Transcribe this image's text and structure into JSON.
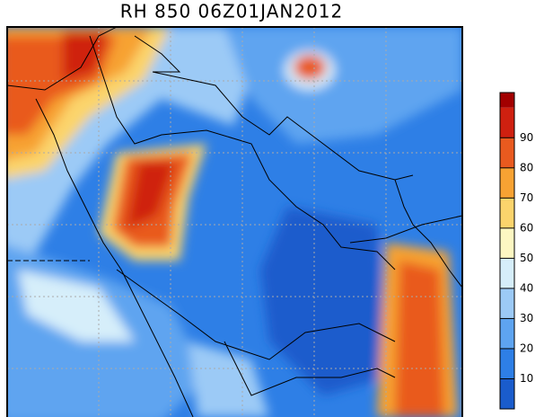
{
  "title": "RH 850 06Z01JAN2012",
  "colorbar": {
    "lim": [
      0,
      105
    ],
    "ticks": [
      10,
      20,
      30,
      40,
      50,
      60,
      70,
      80,
      90
    ],
    "colors": [
      "#1a5ccc",
      "#2e7fe6",
      "#5ea4f0",
      "#9ccaf6",
      "#d6eefa",
      "#fdf7c2",
      "#fbd46c",
      "#f7a233",
      "#e95a1f",
      "#cf2010",
      "#a20000"
    ]
  }
}
